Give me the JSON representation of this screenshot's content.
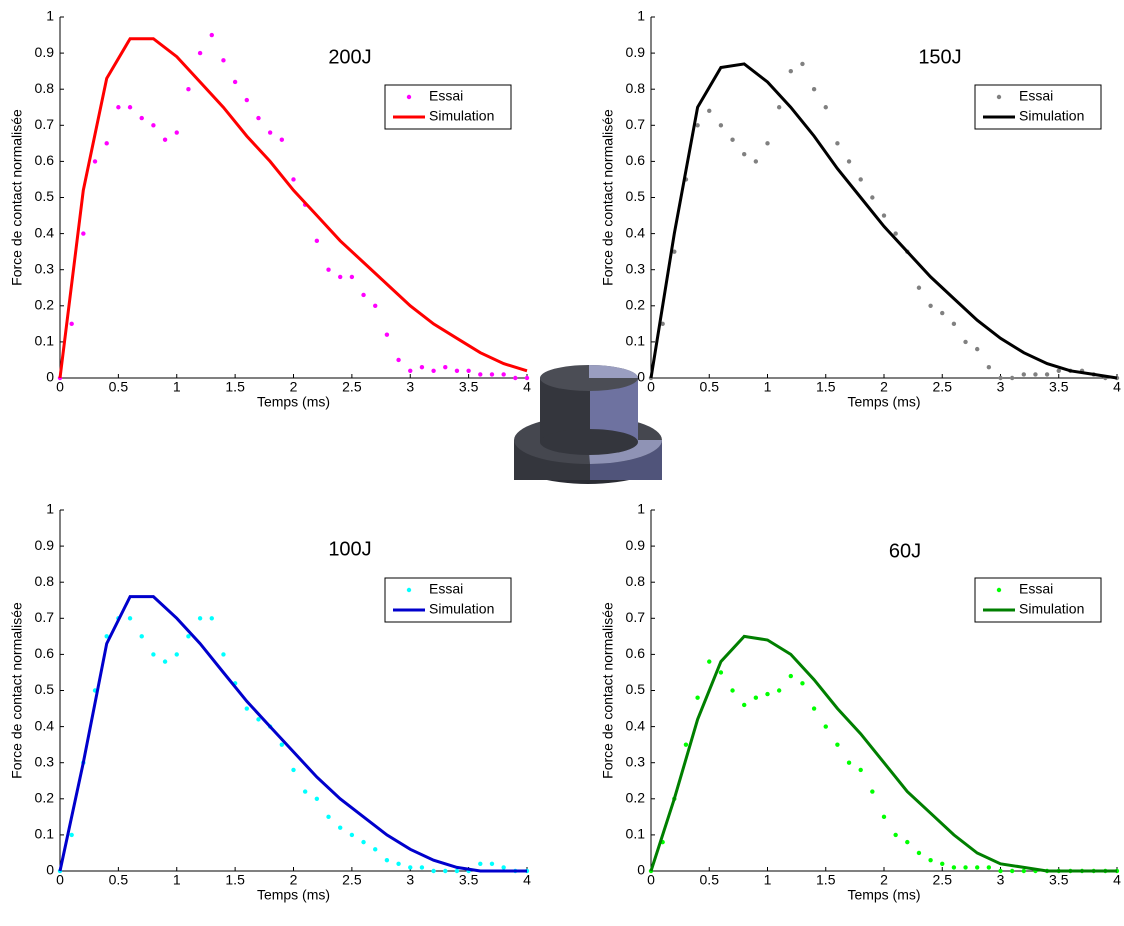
{
  "chart_data": [
    {
      "type": "line",
      "title": "200J",
      "xlabel": "Temps (ms)",
      "ylabel": "Force de contact normalisée",
      "xlim": [
        0,
        4
      ],
      "ylim": [
        0,
        1
      ],
      "xticks": [
        0,
        0.5,
        1,
        1.5,
        2,
        2.5,
        3,
        3.5,
        4
      ],
      "yticks": [
        0,
        0.1,
        0.2,
        0.3,
        0.4,
        0.5,
        0.6,
        0.7,
        0.8,
        0.9,
        1
      ],
      "legend": "upper right",
      "series": [
        {
          "name": "Essai",
          "marker": "dot",
          "color": "#ff00ff",
          "x": [
            0,
            0.1,
            0.2,
            0.3,
            0.4,
            0.5,
            0.6,
            0.7,
            0.8,
            0.9,
            1,
            1.1,
            1.2,
            1.3,
            1.4,
            1.5,
            1.6,
            1.7,
            1.8,
            1.9,
            2,
            2.1,
            2.2,
            2.3,
            2.4,
            2.5,
            2.6,
            2.7,
            2.8,
            2.9,
            3,
            3.1,
            3.2,
            3.3,
            3.4,
            3.5,
            3.6,
            3.7,
            3.8,
            3.9,
            4
          ],
          "values": [
            0,
            0.15,
            0.4,
            0.6,
            0.65,
            0.75,
            0.75,
            0.72,
            0.7,
            0.66,
            0.68,
            0.8,
            0.9,
            0.95,
            0.88,
            0.82,
            0.77,
            0.72,
            0.68,
            0.66,
            0.55,
            0.48,
            0.38,
            0.3,
            0.28,
            0.28,
            0.23,
            0.2,
            0.12,
            0.05,
            0.02,
            0.03,
            0.02,
            0.03,
            0.02,
            0.02,
            0.01,
            0.01,
            0.01,
            0,
            0
          ]
        },
        {
          "name": "Simulation",
          "marker": "line",
          "color": "#ff0000",
          "x": [
            0,
            0.2,
            0.4,
            0.6,
            0.8,
            1,
            1.2,
            1.4,
            1.6,
            1.8,
            2,
            2.2,
            2.4,
            2.6,
            2.8,
            3,
            3.2,
            3.4,
            3.6,
            3.8,
            4
          ],
          "values": [
            0,
            0.52,
            0.83,
            0.94,
            0.94,
            0.89,
            0.82,
            0.75,
            0.67,
            0.6,
            0.52,
            0.45,
            0.38,
            0.32,
            0.26,
            0.2,
            0.15,
            0.11,
            0.07,
            0.04,
            0.02
          ]
        }
      ]
    },
    {
      "type": "line",
      "title": "150J",
      "xlabel": "Temps (ms)",
      "ylabel": "Force de contact normalisée",
      "xlim": [
        0,
        4
      ],
      "ylim": [
        0,
        1
      ],
      "xticks": [
        0,
        0.5,
        1,
        1.5,
        2,
        2.5,
        3,
        3.5,
        4
      ],
      "yticks": [
        0,
        0.1,
        0.2,
        0.3,
        0.4,
        0.5,
        0.6,
        0.7,
        0.8,
        0.9,
        1
      ],
      "legend": "upper right",
      "series": [
        {
          "name": "Essai",
          "marker": "dot",
          "color": "#808080",
          "x": [
            0,
            0.1,
            0.2,
            0.3,
            0.4,
            0.5,
            0.6,
            0.7,
            0.8,
            0.9,
            1,
            1.1,
            1.2,
            1.3,
            1.4,
            1.5,
            1.6,
            1.7,
            1.8,
            1.9,
            2,
            2.1,
            2.2,
            2.3,
            2.4,
            2.5,
            2.6,
            2.7,
            2.8,
            2.9,
            3,
            3.1,
            3.2,
            3.3,
            3.4,
            3.5,
            3.6,
            3.7,
            3.8,
            3.9,
            4
          ],
          "values": [
            0,
            0.15,
            0.35,
            0.55,
            0.7,
            0.74,
            0.7,
            0.66,
            0.62,
            0.6,
            0.65,
            0.75,
            0.85,
            0.87,
            0.8,
            0.75,
            0.65,
            0.6,
            0.55,
            0.5,
            0.45,
            0.4,
            0.35,
            0.25,
            0.2,
            0.18,
            0.15,
            0.1,
            0.08,
            0.03,
            0,
            0,
            0.01,
            0.01,
            0.01,
            0.02,
            0.02,
            0.02,
            0.01,
            0,
            0
          ]
        },
        {
          "name": "Simulation",
          "marker": "line",
          "color": "#000000",
          "x": [
            0,
            0.2,
            0.4,
            0.6,
            0.8,
            1,
            1.2,
            1.4,
            1.6,
            1.8,
            2,
            2.2,
            2.4,
            2.6,
            2.8,
            3,
            3.2,
            3.4,
            3.6,
            3.8,
            4
          ],
          "values": [
            0,
            0.4,
            0.75,
            0.86,
            0.87,
            0.82,
            0.75,
            0.67,
            0.58,
            0.5,
            0.42,
            0.35,
            0.28,
            0.22,
            0.16,
            0.11,
            0.07,
            0.04,
            0.02,
            0.01,
            0
          ]
        }
      ]
    },
    {
      "type": "line",
      "title": "100J",
      "xlabel": "Temps (ms)",
      "ylabel": "Force de contact normalisée",
      "xlim": [
        0,
        4
      ],
      "ylim": [
        0,
        1
      ],
      "xticks": [
        0,
        0.5,
        1,
        1.5,
        2,
        2.5,
        3,
        3.5,
        4
      ],
      "yticks": [
        0,
        0.1,
        0.2,
        0.3,
        0.4,
        0.5,
        0.6,
        0.7,
        0.8,
        0.9,
        1
      ],
      "legend": "upper right",
      "series": [
        {
          "name": "Essai",
          "marker": "dot",
          "color": "#00ffff",
          "x": [
            0,
            0.1,
            0.2,
            0.3,
            0.4,
            0.5,
            0.6,
            0.7,
            0.8,
            0.9,
            1,
            1.1,
            1.2,
            1.3,
            1.4,
            1.5,
            1.6,
            1.7,
            1.8,
            1.9,
            2,
            2.1,
            2.2,
            2.3,
            2.4,
            2.5,
            2.6,
            2.7,
            2.8,
            2.9,
            3,
            3.1,
            3.2,
            3.3,
            3.4,
            3.5,
            3.6,
            3.7,
            3.8,
            3.9,
            4
          ],
          "values": [
            0,
            0.1,
            0.3,
            0.5,
            0.65,
            0.7,
            0.7,
            0.65,
            0.6,
            0.58,
            0.6,
            0.65,
            0.7,
            0.7,
            0.6,
            0.52,
            0.45,
            0.42,
            0.4,
            0.35,
            0.28,
            0.22,
            0.2,
            0.15,
            0.12,
            0.1,
            0.08,
            0.06,
            0.03,
            0.02,
            0.01,
            0.01,
            0,
            0,
            0,
            0,
            0.02,
            0.02,
            0.01,
            0,
            0
          ]
        },
        {
          "name": "Simulation",
          "marker": "line",
          "color": "#0000cc",
          "x": [
            0,
            0.2,
            0.4,
            0.6,
            0.8,
            1,
            1.2,
            1.4,
            1.6,
            1.8,
            2,
            2.2,
            2.4,
            2.6,
            2.8,
            3,
            3.2,
            3.4,
            3.6,
            3.8,
            4
          ],
          "values": [
            0,
            0.3,
            0.63,
            0.76,
            0.76,
            0.7,
            0.63,
            0.55,
            0.47,
            0.4,
            0.33,
            0.26,
            0.2,
            0.15,
            0.1,
            0.06,
            0.03,
            0.01,
            0,
            0,
            0
          ]
        }
      ]
    },
    {
      "type": "line",
      "title": "60J",
      "xlabel": "Temps (ms)",
      "ylabel": "Force de contact normalisée",
      "xlim": [
        0,
        4
      ],
      "ylim": [
        0,
        1
      ],
      "xticks": [
        0,
        0.5,
        1,
        1.5,
        2,
        2.5,
        3,
        3.5,
        4
      ],
      "yticks": [
        0,
        0.1,
        0.2,
        0.3,
        0.4,
        0.5,
        0.6,
        0.7,
        0.8,
        0.9,
        1
      ],
      "legend": "upper right",
      "series": [
        {
          "name": "Essai",
          "marker": "dot",
          "color": "#00ff00",
          "x": [
            0,
            0.1,
            0.2,
            0.3,
            0.4,
            0.5,
            0.6,
            0.7,
            0.8,
            0.9,
            1,
            1.1,
            1.2,
            1.3,
            1.4,
            1.5,
            1.6,
            1.7,
            1.8,
            1.9,
            2,
            2.1,
            2.2,
            2.3,
            2.4,
            2.5,
            2.6,
            2.7,
            2.8,
            2.9,
            3,
            3.1,
            3.2,
            3.3,
            3.4,
            3.5,
            3.6,
            3.7,
            3.8,
            3.9,
            4
          ],
          "values": [
            0,
            0.08,
            0.2,
            0.35,
            0.48,
            0.58,
            0.55,
            0.5,
            0.46,
            0.48,
            0.49,
            0.5,
            0.54,
            0.52,
            0.45,
            0.4,
            0.35,
            0.3,
            0.28,
            0.22,
            0.15,
            0.1,
            0.08,
            0.05,
            0.03,
            0.02,
            0.01,
            0.01,
            0.01,
            0.01,
            0,
            0,
            0,
            0,
            0,
            0,
            0,
            0,
            0,
            0,
            0
          ]
        },
        {
          "name": "Simulation",
          "marker": "line",
          "color": "#007f00",
          "x": [
            0,
            0.2,
            0.4,
            0.6,
            0.8,
            1,
            1.2,
            1.4,
            1.6,
            1.8,
            2,
            2.2,
            2.4,
            2.6,
            2.8,
            3,
            3.2,
            3.4,
            3.6,
            3.8,
            4
          ],
          "values": [
            0,
            0.2,
            0.42,
            0.58,
            0.65,
            0.64,
            0.6,
            0.53,
            0.45,
            0.38,
            0.3,
            0.22,
            0.16,
            0.1,
            0.05,
            0.02,
            0.01,
            0,
            0,
            0,
            0
          ]
        }
      ]
    }
  ]
}
